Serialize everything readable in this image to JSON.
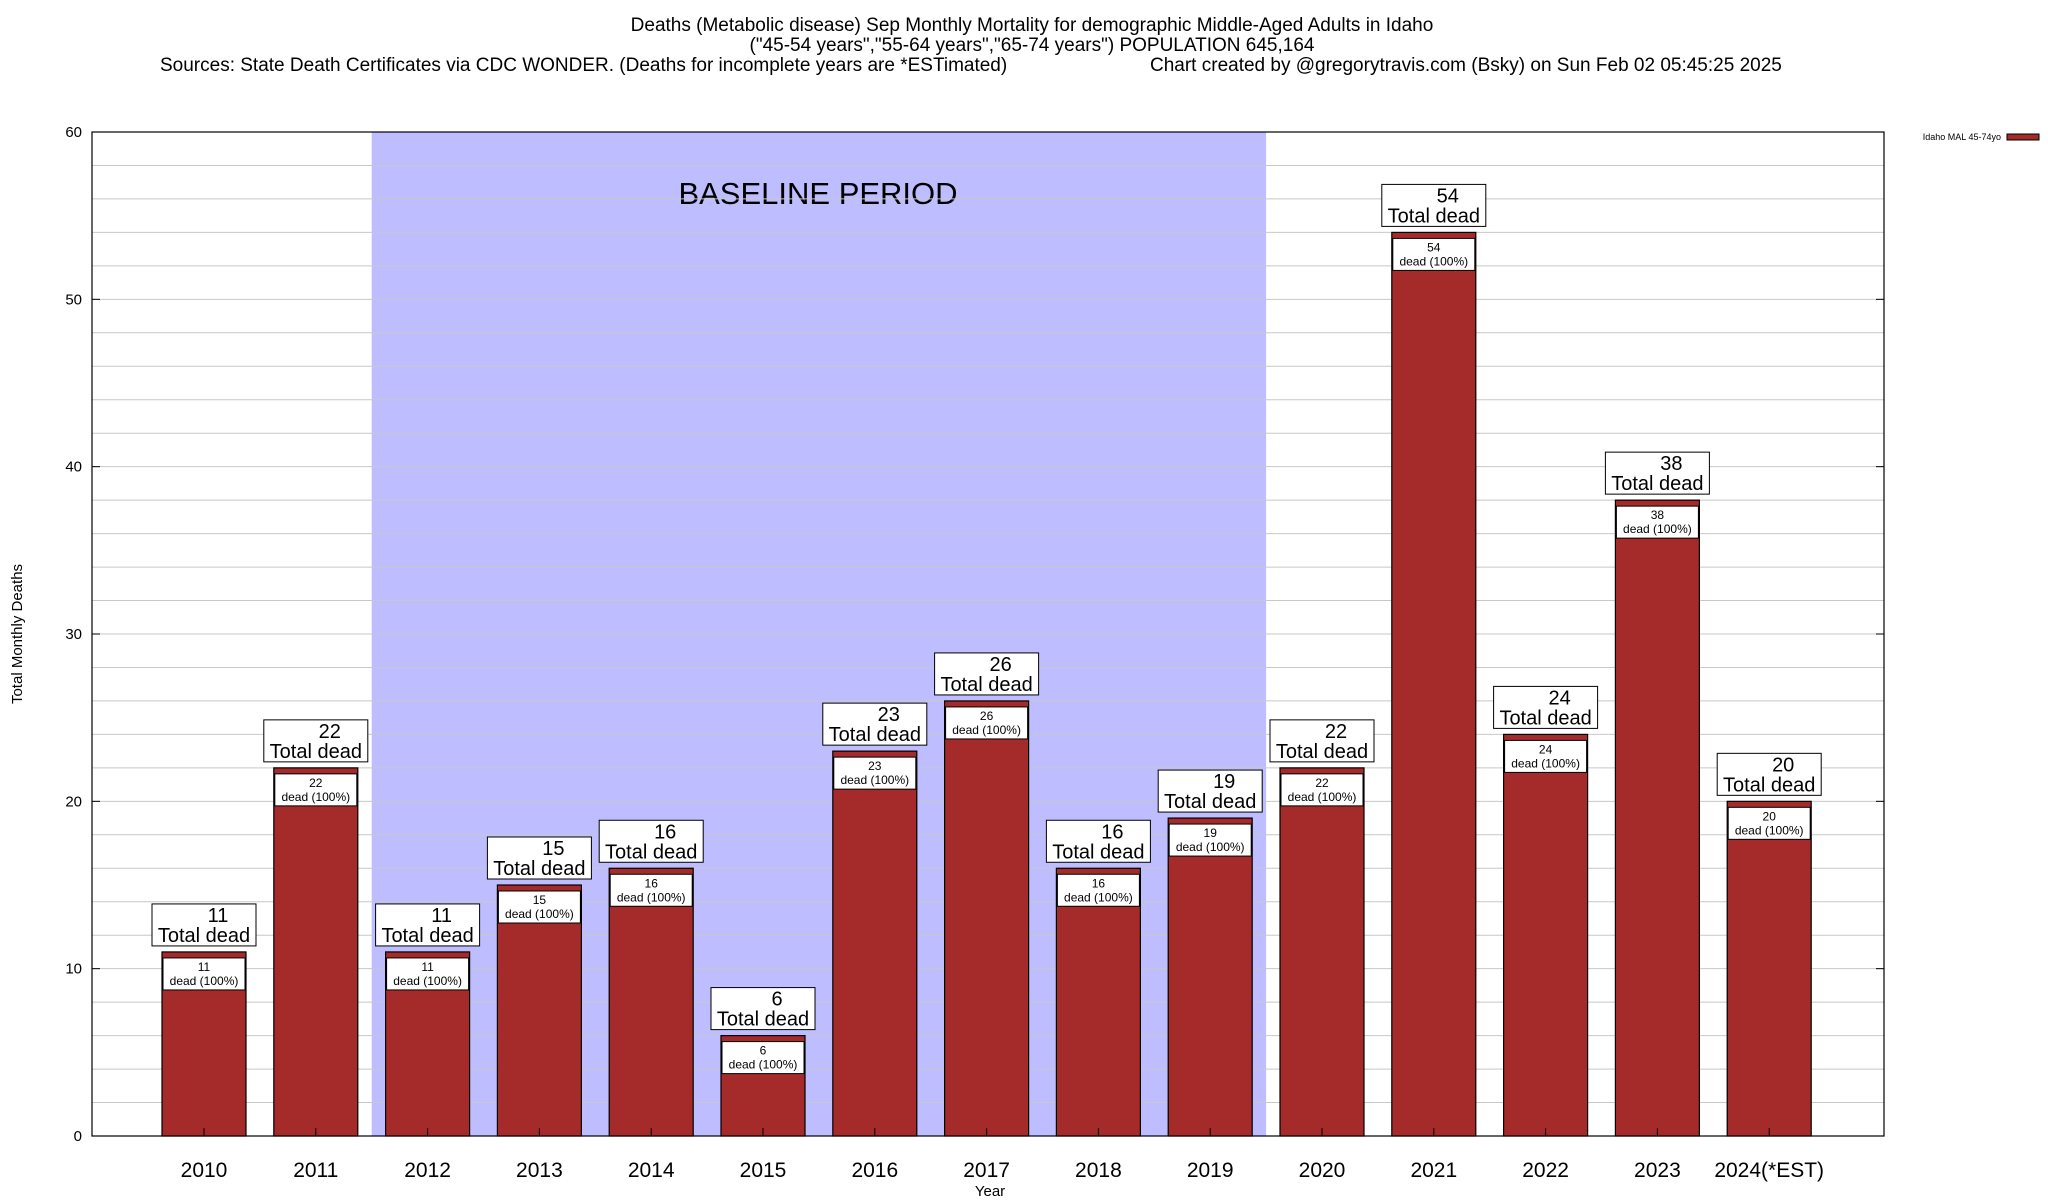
{
  "title": {
    "line1": "Deaths (Metabolic disease) Sep Monthly Mortality for demographic Middle-Aged Adults in Idaho",
    "line2": "(\"45-54 years\",\"55-64 years\",\"65-74 years\") POPULATION 645,164",
    "line3_left": "Sources: State Death Certificates via CDC WONDER. (Deaths for incomplete years are *ESTimated)",
    "line3_right": "Chart created by @gregorytravis.com (Bsky) on Sun Feb 02 05:45:25 2025"
  },
  "baseline_label": "BASELINE PERIOD",
  "legend": {
    "label": "Idaho MAL 45-74yo",
    "color": "#a52a2a"
  },
  "chart_data": {
    "type": "bar",
    "xlabel": "Year",
    "ylabel": "Total Monthly Deaths",
    "ylim": [
      0,
      60
    ],
    "yticks": [
      0,
      10,
      20,
      30,
      40,
      50,
      60
    ],
    "grid": true,
    "legend_position": "top-right",
    "categories": [
      "2010",
      "2011",
      "2012",
      "2013",
      "2014",
      "2015",
      "2016",
      "2017",
      "2018",
      "2019",
      "2020",
      "2021",
      "2022",
      "2023",
      "2024(*EST)"
    ],
    "series": [
      {
        "name": "Idaho MAL 45-74yo",
        "color": "#a52a2a",
        "values": [
          11,
          22,
          11,
          15,
          16,
          6,
          23,
          26,
          16,
          19,
          22,
          54,
          24,
          38,
          20
        ]
      }
    ],
    "baseline_period": {
      "from": "2012",
      "to": "2019",
      "color": "#bdbdff"
    },
    "total_label": "Total dead",
    "inner_label": "dead (100%)"
  }
}
